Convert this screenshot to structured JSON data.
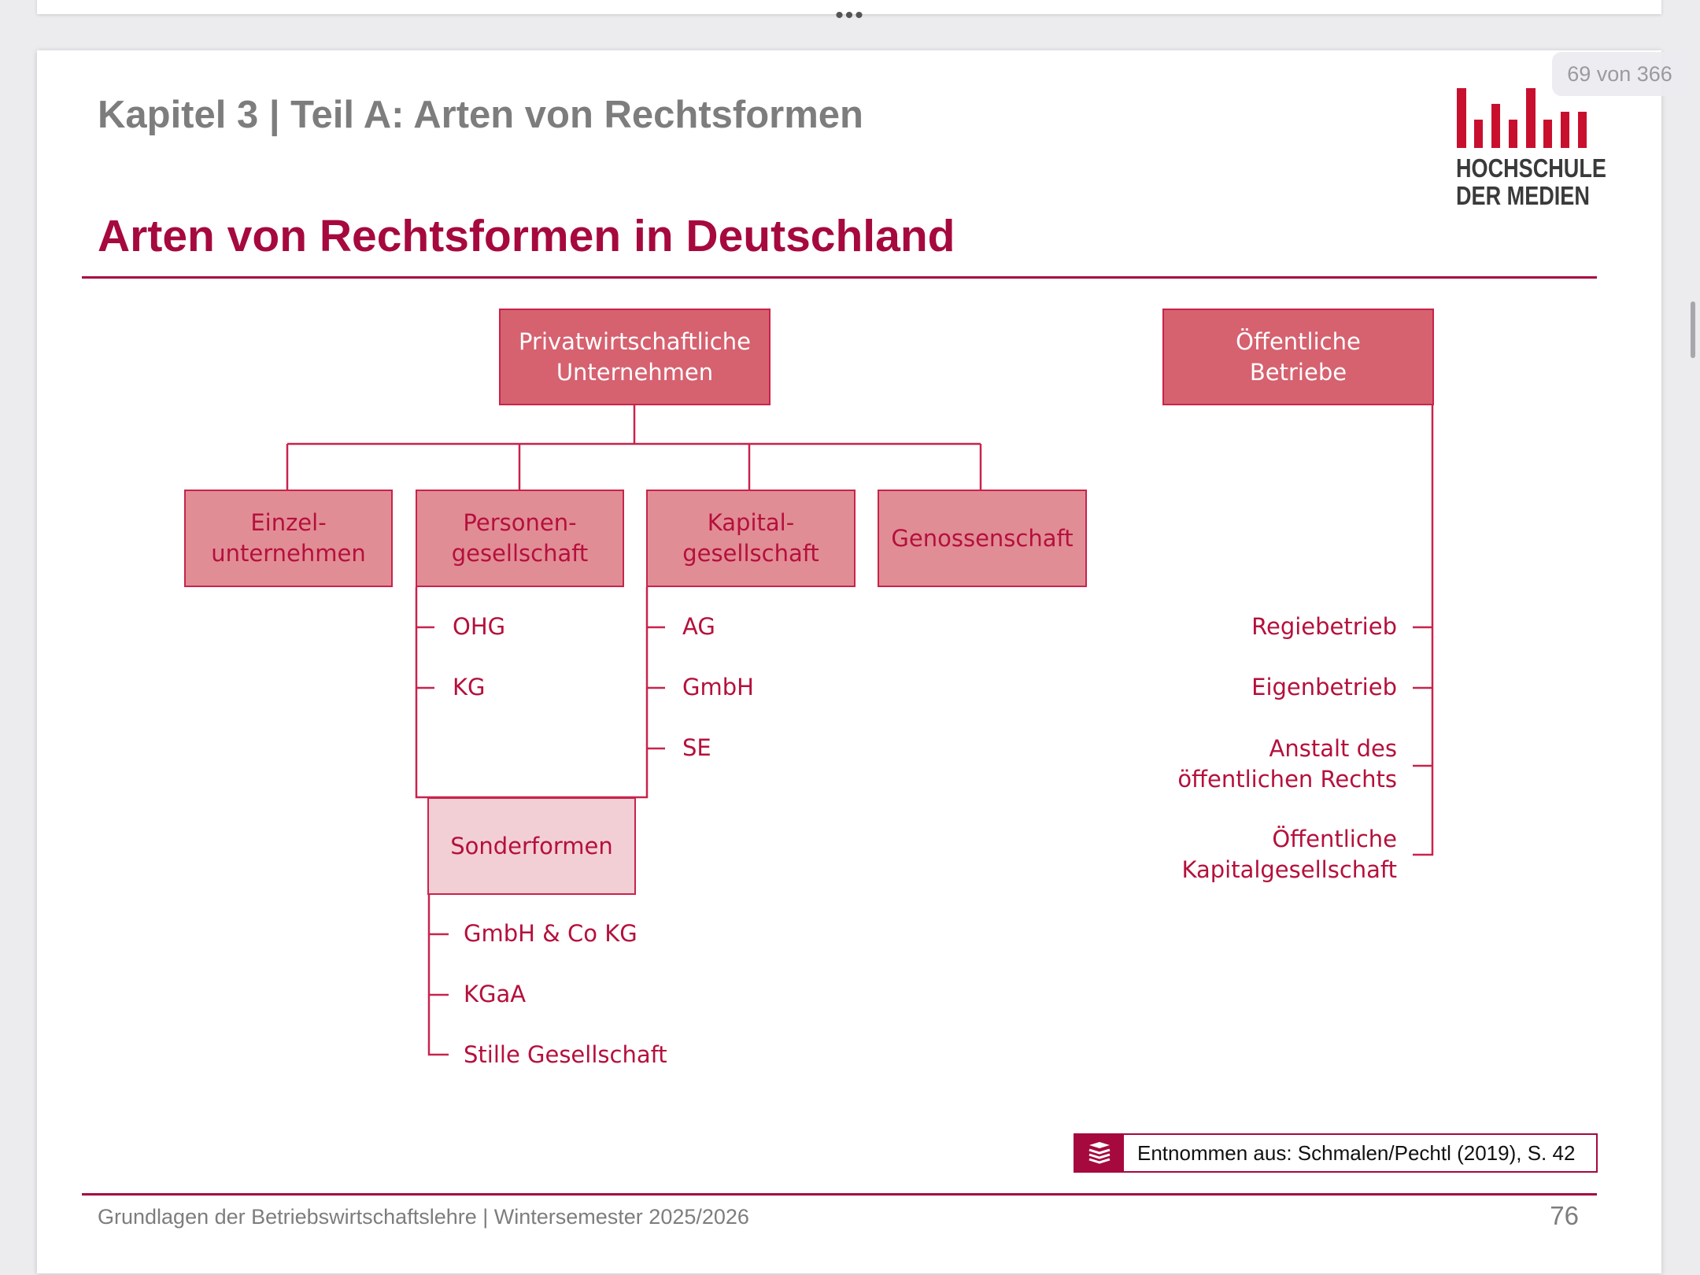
{
  "viewer": {
    "more_label": "•••",
    "page_counter": "69 von 366"
  },
  "slide": {
    "header": "Kapitel 3 | Teil A: Arten von Rechtsformen",
    "title": "Arten von Rechtsformen in Deutschland",
    "logo": {
      "line1": "HOCHSCHULE",
      "line2": "DER MEDIEN",
      "color": "#c8102e"
    },
    "source_note": "Entnommen aus: Schmalen/Pechtl (2019), S. 42",
    "footer": "Grundlagen der Betriebswirtschaftslehre | Wintersemester 2025/2026",
    "page_number": "76",
    "accent_color": "#a6093d"
  },
  "diagram": {
    "private_root": "Privatwirtschaftliche\nUnternehmen",
    "public_root": "Öffentliche\nBetriebe",
    "private_types": [
      {
        "label": "Einzel-\nunternehmen",
        "children": []
      },
      {
        "label": "Personen-\ngesellschaft",
        "children": [
          "OHG",
          "KG"
        ]
      },
      {
        "label": "Kapital-\ngesellschaft",
        "children": [
          "AG",
          "GmbH",
          "SE"
        ]
      },
      {
        "label": "Genossenschaft",
        "children": []
      }
    ],
    "special_forms": {
      "label": "Sonderformen",
      "children": [
        "GmbH & Co KG",
        "KGaA",
        "Stille Gesellschaft"
      ]
    },
    "public_types": [
      "Regiebetrieb",
      "Eigenbetrieb",
      "Anstalt des\nöffentlichen Rechts",
      "Öffentliche\nKapitalgesellschaft"
    ]
  }
}
